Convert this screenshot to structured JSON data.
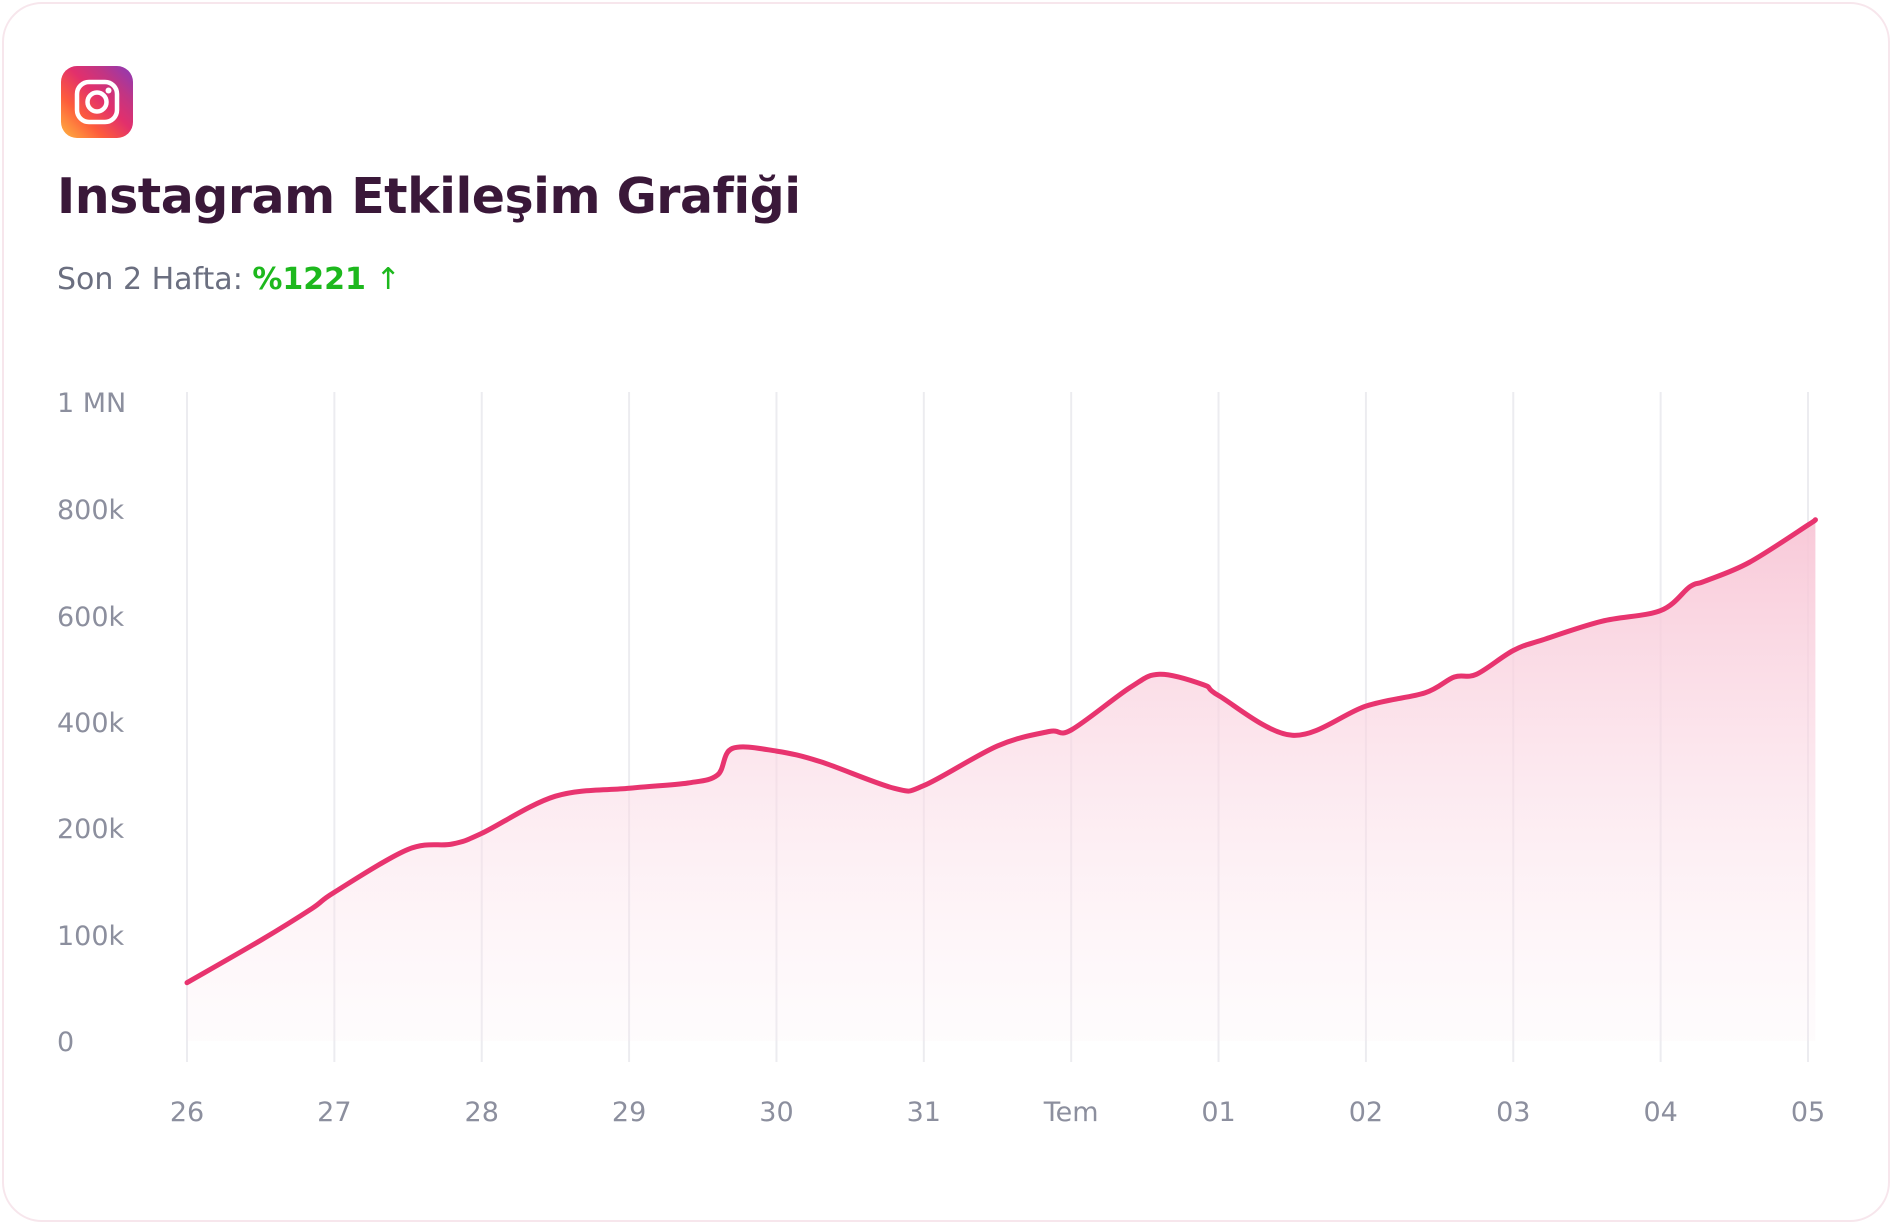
{
  "header": {
    "icon": "instagram-icon",
    "title": "Instagram Etkileşim Grafiği",
    "period_label": "Son 2 Hafta:",
    "growth_value": "%1221",
    "growth_arrow": "↑"
  },
  "colors": {
    "line": "#e8346f",
    "fill_top": "#f8c6d6",
    "grid": "#ececf0",
    "growth": "#1db81d"
  },
  "chart_data": {
    "type": "area",
    "x": [
      "26",
      "27",
      "28",
      "29",
      "30",
      "31",
      "Tem",
      "01",
      "02",
      "03",
      "04",
      "05"
    ],
    "y_ticks": [
      {
        "label": "0",
        "value": 0
      },
      {
        "label": "100k",
        "value": 100000
      },
      {
        "label": "200k",
        "value": 200000
      },
      {
        "label": "400k",
        "value": 400000
      },
      {
        "label": "600k",
        "value": 600000
      },
      {
        "label": "800k",
        "value": 800000
      },
      {
        "label": "1 MN",
        "value": 1000000
      }
    ],
    "series": [
      {
        "points": [
          [
            0.0,
            55000
          ],
          [
            0.5,
            95000
          ],
          [
            0.85,
            125000
          ],
          [
            1.0,
            140000
          ],
          [
            1.5,
            180000
          ],
          [
            1.8,
            185000
          ],
          [
            2.0,
            195000
          ],
          [
            2.5,
            260000
          ],
          [
            3.0,
            275000
          ],
          [
            3.4,
            285000
          ],
          [
            3.6,
            300000
          ],
          [
            3.7,
            350000
          ],
          [
            4.0,
            345000
          ],
          [
            4.3,
            325000
          ],
          [
            4.8,
            275000
          ],
          [
            5.0,
            280000
          ],
          [
            5.5,
            355000
          ],
          [
            5.85,
            382000
          ],
          [
            6.0,
            385000
          ],
          [
            6.4,
            465000
          ],
          [
            6.6,
            490000
          ],
          [
            6.9,
            470000
          ],
          [
            7.0,
            450000
          ],
          [
            7.5,
            375000
          ],
          [
            8.0,
            430000
          ],
          [
            8.4,
            455000
          ],
          [
            8.6,
            485000
          ],
          [
            8.75,
            490000
          ],
          [
            9.0,
            535000
          ],
          [
            9.2,
            555000
          ],
          [
            9.6,
            590000
          ],
          [
            10.0,
            610000
          ],
          [
            10.2,
            655000
          ],
          [
            10.3,
            665000
          ],
          [
            10.6,
            700000
          ],
          [
            11.0,
            770000
          ],
          [
            11.05,
            780000
          ]
        ]
      }
    ],
    "ylim": [
      0,
      1000000
    ],
    "grid": "vertical",
    "legend": "none"
  }
}
